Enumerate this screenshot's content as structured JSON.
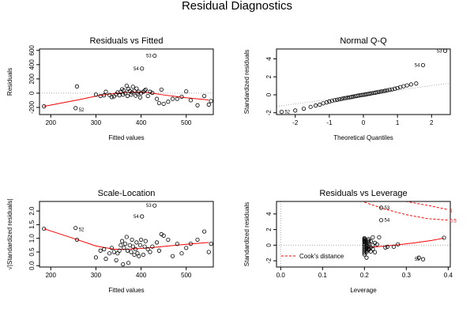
{
  "main_title": "Residual Diagnostics",
  "colors": {
    "fit_line": "#ff0000",
    "reference_line": "#aaaaaa",
    "cook_line": "#ff0000",
    "points": "#000000"
  },
  "chart_data": [
    {
      "id": "resid_fitted",
      "type": "scatter",
      "title": "Residuals vs Fitted",
      "xlabel": "Fitted values",
      "ylabel": "Residuals",
      "xlim": [
        175,
        560
      ],
      "ylim": [
        -300,
        620
      ],
      "xticks": [
        200,
        300,
        400,
        500
      ],
      "yticks": [
        -200,
        0,
        200,
        400,
        600
      ],
      "reference": {
        "type": "hline",
        "y": 0,
        "style": "dotted"
      },
      "smoother": {
        "x": [
          185,
          255,
          305,
          340,
          370,
          395,
          420,
          450,
          500,
          550
        ],
        "y": [
          -185,
          -100,
          -35,
          -5,
          12,
          15,
          5,
          -25,
          -65,
          -95
        ]
      },
      "points": {
        "x": [
          185,
          255,
          258,
          300,
          310,
          318,
          322,
          330,
          335,
          340,
          345,
          348,
          352,
          355,
          358,
          360,
          362,
          365,
          368,
          370,
          372,
          375,
          378,
          380,
          382,
          385,
          388,
          390,
          392,
          395,
          398,
          400,
          402,
          405,
          408,
          410,
          415,
          420,
          425,
          430,
          435,
          440,
          445,
          450,
          460,
          470,
          480,
          490,
          500,
          510,
          525,
          540,
          550,
          555
        ],
        "y": [
          -185,
          -210,
          95,
          -20,
          -40,
          -30,
          20,
          -25,
          -55,
          -45,
          -15,
          10,
          -30,
          20,
          55,
          -20,
          40,
          0,
          105,
          -40,
          60,
          30,
          -20,
          10,
          90,
          30,
          -35,
          65,
          -10,
          20,
          -60,
          0,
          345,
          20,
          35,
          50,
          -40,
          20,
          5,
          525,
          -80,
          -140,
          50,
          -150,
          -120,
          -80,
          -80,
          -50,
          25,
          -100,
          -170,
          -40,
          -160,
          -110
        ],
        "labels": {
          "1": "52",
          "32": "54",
          "39": "53"
        }
      }
    },
    {
      "id": "normal_qq",
      "type": "scatter",
      "title": "Normal Q-Q",
      "xlabel": "Theoretical Quantiles",
      "ylabel": "Standardized residuals",
      "xlim": [
        -2.55,
        2.55
      ],
      "ylim": [
        -2.2,
        5.1
      ],
      "xticks": [
        -2,
        -1,
        0,
        1,
        2
      ],
      "yticks": [
        -2,
        0,
        2,
        4
      ],
      "reference": {
        "type": "line",
        "x": [
          -2.55,
          2.55
        ],
        "y": [
          -1.3,
          1.3
        ],
        "style": "dotted"
      },
      "points": {
        "x": [
          -2.4,
          -2.0,
          -1.75,
          -1.55,
          -1.4,
          -1.28,
          -1.18,
          -1.08,
          -1.0,
          -0.92,
          -0.84,
          -0.77,
          -0.7,
          -0.64,
          -0.58,
          -0.52,
          -0.46,
          -0.4,
          -0.35,
          -0.3,
          -0.24,
          -0.19,
          -0.14,
          -0.09,
          -0.05,
          0.0,
          0.05,
          0.09,
          0.14,
          0.19,
          0.24,
          0.3,
          0.35,
          0.4,
          0.46,
          0.52,
          0.58,
          0.64,
          0.7,
          0.77,
          0.84,
          0.92,
          1.0,
          1.08,
          1.18,
          1.28,
          1.4,
          1.55,
          1.75,
          2.4
        ],
        "y": [
          -1.9,
          -1.75,
          -1.55,
          -1.35,
          -1.2,
          -1.1,
          -0.95,
          -0.85,
          -0.75,
          -0.68,
          -0.6,
          -0.55,
          -0.5,
          -0.45,
          -0.4,
          -0.36,
          -0.32,
          -0.28,
          -0.24,
          -0.2,
          -0.16,
          -0.12,
          -0.08,
          -0.05,
          -0.02,
          0.0,
          0.03,
          0.06,
          0.1,
          0.13,
          0.17,
          0.2,
          0.24,
          0.28,
          0.32,
          0.36,
          0.4,
          0.45,
          0.5,
          0.55,
          0.6,
          0.68,
          0.75,
          0.85,
          0.95,
          1.05,
          1.15,
          1.25,
          3.3,
          4.9
        ],
        "labels": {
          "0": "52",
          "48": "54",
          "49": "53"
        }
      }
    },
    {
      "id": "scale_location",
      "type": "scatter",
      "title": "Scale-Location",
      "xlabel": "Fitted values",
      "ylabel": "√|Standardized residuals|",
      "xlim": [
        175,
        560
      ],
      "ylim": [
        -0.05,
        2.35
      ],
      "xticks": [
        200,
        300,
        400,
        500
      ],
      "yticks": [
        0.0,
        0.5,
        1.0,
        1.5,
        2.0
      ],
      "smoother": {
        "x": [
          185,
          250,
          300,
          340,
          370,
          400,
          430,
          460,
          500,
          550
        ],
        "y": [
          1.35,
          1.0,
          0.72,
          0.6,
          0.6,
          0.63,
          0.67,
          0.72,
          0.78,
          0.85
        ]
      },
      "points": {
        "x": [
          185,
          255,
          258,
          300,
          310,
          318,
          322,
          330,
          335,
          340,
          345,
          348,
          352,
          355,
          358,
          360,
          362,
          365,
          368,
          370,
          372,
          375,
          378,
          380,
          382,
          385,
          388,
          390,
          392,
          395,
          398,
          400,
          402,
          405,
          408,
          410,
          415,
          420,
          425,
          430,
          435,
          440,
          445,
          450,
          460,
          470,
          480,
          490,
          500,
          510,
          525,
          540,
          550,
          555
        ],
        "y": [
          1.35,
          1.38,
          0.95,
          0.3,
          0.55,
          0.6,
          0.25,
          0.45,
          0.65,
          0.5,
          0.2,
          0.45,
          0.55,
          0.75,
          0.9,
          0.05,
          0.65,
          0.8,
          1.05,
          0.55,
          0.1,
          0.75,
          0.5,
          0.95,
          0.7,
          0.4,
          0.6,
          0.85,
          0.45,
          0.35,
          0.75,
          0.95,
          1.8,
          0.4,
          0.7,
          0.9,
          0.6,
          0.5,
          0.7,
          2.2,
          0.85,
          0.55,
          1.15,
          1.1,
          0.95,
          0.35,
          0.8,
          0.45,
          0.65,
          0.8,
          0.95,
          1.25,
          0.5,
          0.8
        ],
        "labels": {
          "1": "52",
          "32": "54",
          "39": "53"
        }
      }
    },
    {
      "id": "resid_leverage",
      "type": "scatter",
      "title": "Residuals vs Leverage",
      "xlabel": "Leverage",
      "ylabel": "Standardized residuals",
      "xlim": [
        -0.01,
        0.405
      ],
      "ylim": [
        -2.8,
        5.6
      ],
      "xticks": [
        0.0,
        0.1,
        0.2,
        0.3,
        0.4
      ],
      "yticks": [
        -2,
        0,
        2,
        4
      ],
      "reference": {
        "type": "hline",
        "y": 0,
        "style": "dotted"
      },
      "smoother": {
        "x": [
          0.2,
          0.22,
          0.25,
          0.28,
          0.32,
          0.36,
          0.39
        ],
        "y": [
          -0.3,
          -0.25,
          -0.1,
          0.05,
          0.3,
          0.6,
          0.9
        ]
      },
      "cooks_distance": {
        "legend": "Cook's distance",
        "level_labels": [
          "1",
          "0.5"
        ],
        "curves": [
          {
            "level": "1",
            "x": [
              0.28,
              0.32,
              0.36,
              0.4
            ],
            "y": [
              5.8,
              5.4,
              5.0,
              4.55
            ]
          },
          {
            "level": "0.5",
            "x": [
              0.2,
              0.25,
              0.3,
              0.35,
              0.4
            ],
            "y": [
              5.5,
              4.6,
              3.9,
              3.4,
              3.2
            ]
          }
        ]
      },
      "points": {
        "x": [
          0.2,
          0.2,
          0.2,
          0.2,
          0.2,
          0.2,
          0.2,
          0.2,
          0.2,
          0.2,
          0.2,
          0.2,
          0.2,
          0.2,
          0.205,
          0.205,
          0.205,
          0.205,
          0.205,
          0.205,
          0.205,
          0.205,
          0.21,
          0.21,
          0.21,
          0.21,
          0.21,
          0.21,
          0.21,
          0.215,
          0.215,
          0.215,
          0.22,
          0.22,
          0.22,
          0.225,
          0.225,
          0.23,
          0.235,
          0.24,
          0.24,
          0.25,
          0.255,
          0.27,
          0.28,
          0.33,
          0.34,
          0.39
        ],
        "y": [
          0.8,
          0.6,
          0.4,
          0.2,
          0.0,
          -0.2,
          -0.4,
          -0.6,
          -0.8,
          -1.0,
          -1.2,
          0.9,
          0.7,
          0.5,
          0.3,
          0.1,
          -0.1,
          -0.3,
          -0.5,
          -0.7,
          -0.9,
          -1.6,
          0.8,
          0.6,
          0.4,
          0.2,
          -0.2,
          -0.4,
          -0.6,
          0.5,
          -0.3,
          -0.8,
          1.0,
          0.0,
          -0.5,
          0.3,
          -0.9,
          0.1,
          1.0,
          4.8,
          3.2,
          -0.3,
          -0.2,
          -0.2,
          0.1,
          -1.6,
          -1.8,
          0.95
        ],
        "labels": {
          "39": "53",
          "40": "54",
          "46": "55"
        }
      }
    }
  ]
}
